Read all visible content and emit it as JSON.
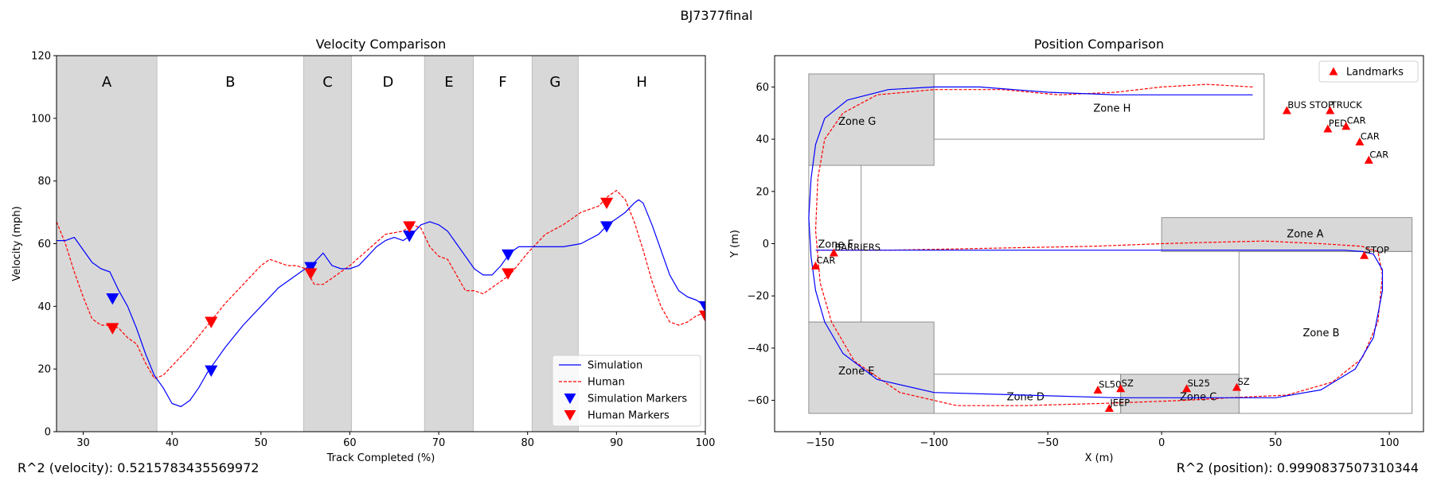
{
  "figure": {
    "suptitle": "BJ7377final",
    "r2_velocity": "R^2 (velocity): 0.5215783435569972",
    "r2_position": "R^2 (position): 0.9990837507310344"
  },
  "colors": {
    "simulation": "#0000ff",
    "human": "#ff0000",
    "zone_fill": "#d8d8d8",
    "zone_edge": "#909090",
    "landmark": "#ff0000"
  },
  "chart_data": [
    {
      "type": "line",
      "title": "Velocity Comparison",
      "xlabel": "Track Completed (%)",
      "ylabel": "Velocity (mph)",
      "xlim": [
        27,
        100
      ],
      "ylim": [
        0,
        120
      ],
      "xticks": [
        30,
        40,
        50,
        60,
        70,
        80,
        90,
        100
      ],
      "yticks": [
        0,
        20,
        40,
        60,
        80,
        100,
        120
      ],
      "grid": false,
      "legend": "lower-right",
      "sections": [
        {
          "label": "A",
          "x0": 27,
          "x1": 38.3,
          "shaded": true
        },
        {
          "label": "B",
          "x0": 38.3,
          "x1": 54.8,
          "shaded": false
        },
        {
          "label": "C",
          "x0": 54.8,
          "x1": 60.2,
          "shaded": true
        },
        {
          "label": "D",
          "x0": 60.2,
          "x1": 68.4,
          "shaded": false
        },
        {
          "label": "E",
          "x0": 68.4,
          "x1": 73.9,
          "shaded": true
        },
        {
          "label": "F",
          "x0": 73.9,
          "x1": 80.5,
          "shaded": false
        },
        {
          "label": "G",
          "x0": 80.5,
          "x1": 85.7,
          "shaded": true
        },
        {
          "label": "H",
          "x0": 85.7,
          "x1": 100,
          "shaded": false
        }
      ],
      "series": [
        {
          "name": "Simulation",
          "style": "solid",
          "x": [
            27,
            28,
            29,
            30,
            31,
            32,
            33,
            34,
            35,
            36,
            37,
            38,
            39,
            40,
            41,
            42,
            43,
            44,
            45,
            46,
            48,
            50,
            52,
            54,
            55,
            56,
            57,
            58,
            59,
            60,
            61,
            62,
            63,
            64,
            65,
            66,
            67,
            68,
            69,
            70,
            71,
            72,
            73,
            74,
            75,
            76,
            77,
            78,
            79,
            80,
            82,
            84,
            86,
            88,
            89,
            90,
            91,
            92,
            92.5,
            93,
            94,
            95,
            96,
            97,
            98,
            99,
            100
          ],
          "y": [
            61,
            61,
            62,
            58,
            54,
            52,
            51,
            45,
            40,
            33,
            25,
            18,
            14,
            9,
            8,
            10,
            14,
            19,
            23,
            27,
            34,
            40,
            46,
            50,
            52,
            54,
            57,
            53,
            52,
            52,
            53,
            56,
            59,
            61,
            62,
            61,
            63,
            66,
            67,
            66,
            64,
            60,
            56,
            52,
            50,
            50,
            53,
            57,
            59,
            59,
            59,
            59,
            60,
            63,
            66,
            68,
            70,
            73,
            74,
            73,
            66,
            58,
            50,
            45,
            43,
            42,
            40
          ]
        },
        {
          "name": "Human",
          "style": "dashed",
          "x": [
            27,
            28,
            29,
            30,
            31,
            32,
            33,
            34,
            35,
            36,
            37,
            38,
            39,
            40,
            42,
            44,
            46,
            48,
            50,
            51,
            52,
            53,
            54,
            55,
            56,
            57,
            58,
            60,
            62,
            64,
            66,
            67,
            68,
            69,
            70,
            71,
            72,
            73,
            74,
            75,
            76,
            77,
            78,
            80,
            82,
            84,
            86,
            88,
            89,
            90,
            91,
            92,
            93,
            94,
            95,
            96,
            97,
            98,
            99,
            100
          ],
          "y": [
            67,
            60,
            51,
            43,
            36,
            34,
            34,
            33,
            30,
            28,
            22,
            17,
            18,
            21,
            27,
            34,
            41,
            47,
            53,
            55,
            54,
            53,
            53,
            52,
            47,
            47,
            49,
            53,
            58,
            63,
            64,
            66,
            65,
            59,
            56,
            55,
            50,
            45,
            45,
            44,
            46,
            48,
            50,
            57,
            63,
            66,
            70,
            72,
            75,
            77,
            74,
            67,
            58,
            48,
            40,
            35,
            34,
            35,
            37,
            38
          ]
        }
      ],
      "marker_series": [
        {
          "name": "Simulation Markers",
          "x": [
            33.3,
            44.4,
            55.6,
            66.7,
            77.8,
            88.9,
            100
          ],
          "y": [
            42.5,
            19.5,
            52.5,
            62.5,
            56.5,
            65.5,
            40
          ]
        },
        {
          "name": "Human Markers",
          "x": [
            33.3,
            44.4,
            55.6,
            66.7,
            77.8,
            88.9,
            100
          ],
          "y": [
            33,
            35,
            50.5,
            65.5,
            50.5,
            73,
            37
          ]
        }
      ]
    },
    {
      "type": "line",
      "title": "Position Comparison",
      "xlabel": "X (m)",
      "ylabel": "Y (m)",
      "xlim": [
        -170,
        115
      ],
      "ylim": [
        -72,
        72
      ],
      "xticks": [
        -150,
        -100,
        -50,
        0,
        50,
        100
      ],
      "yticks": [
        -60,
        -40,
        -20,
        0,
        20,
        40,
        60
      ],
      "grid": false,
      "legend": "top-right",
      "legend_label": "Landmarks",
      "zones": [
        {
          "label": "Zone A",
          "x0": 0,
          "y0": -3,
          "x1": 110,
          "y1": 10,
          "shaded": true
        },
        {
          "label": "Zone B",
          "x0": 34,
          "y0": -65,
          "x1": 110,
          "y1": -3,
          "shaded": false
        },
        {
          "label": "Zone C",
          "x0": -18,
          "y0": -65,
          "x1": 34,
          "y1": -50,
          "shaded": true
        },
        {
          "label": "Zone D",
          "x0": -100,
          "y0": -65,
          "x1": -18,
          "y1": -50,
          "shaded": false
        },
        {
          "label": "Zone E",
          "x0": -155,
          "y0": -65,
          "x1": -100,
          "y1": -30,
          "shaded": true
        },
        {
          "label": "Zone F",
          "x0": -155,
          "y0": -30,
          "x1": -132,
          "y1": 30,
          "shaded": false
        },
        {
          "label": "Zone G",
          "x0": -155,
          "y0": 30,
          "x1": -100,
          "y1": 65,
          "shaded": true
        },
        {
          "label": "Zone H",
          "x0": -100,
          "y0": 40,
          "x1": 45,
          "y1": 65,
          "shaded": false
        }
      ],
      "series": [
        {
          "name": "Simulation",
          "style": "solid",
          "x": [
            40,
            10,
            -20,
            -50,
            -80,
            -100,
            -120,
            -138,
            -148,
            -152,
            -154,
            -155,
            -154,
            -152,
            -148,
            -140,
            -125,
            -100,
            -60,
            -20,
            10,
            30,
            50,
            70,
            85,
            93,
            97,
            97,
            93,
            88,
            80,
            70,
            55,
            45,
            35,
            20,
            0,
            -20,
            -50,
            -80,
            -100,
            -120,
            -135,
            -145,
            -150,
            -151.5,
            -152,
            -152
          ],
          "y": [
            57,
            57,
            57,
            58,
            60,
            60,
            59,
            55,
            48,
            38,
            25,
            10,
            -5,
            -18,
            -30,
            -42,
            -52,
            -57,
            -58,
            -59,
            -59,
            -59,
            -59,
            -56,
            -48,
            -36,
            -18,
            -10,
            -4,
            -3,
            -2.5,
            -2.5,
            -2.5,
            -2.5,
            -2.5,
            -2.5,
            -2.5,
            -2.5,
            -2.5,
            -2.5,
            -2.5,
            -2.5,
            -2.5,
            -2.5,
            -2.5,
            -2.5,
            -2.5,
            -2.5
          ]
        },
        {
          "name": "Human",
          "style": "dashed",
          "x": [
            40,
            20,
            0,
            -20,
            -45,
            -70,
            -100,
            -125,
            -140,
            -148,
            -151,
            -152,
            -150,
            -145,
            -135,
            -115,
            -90,
            -60,
            -20,
            10,
            30,
            55,
            75,
            88,
            95,
            97,
            95,
            88,
            70,
            45,
            20,
            0,
            -30,
            -60,
            -90,
            -120,
            -140,
            -150,
            -152
          ],
          "y": [
            60,
            61,
            60,
            58,
            57,
            59,
            59,
            57,
            50,
            40,
            25,
            5,
            -15,
            -30,
            -45,
            -57,
            -62,
            -62,
            -61,
            -60,
            -59,
            -58,
            -53,
            -44,
            -30,
            -12,
            -3,
            -1,
            0,
            1,
            0.5,
            0,
            -1,
            -1.5,
            -2,
            -2.5,
            -2.5,
            -2.5,
            -2.5
          ]
        }
      ],
      "landmarks": [
        {
          "label": "BUS STOP",
          "x": 55,
          "y": 51
        },
        {
          "label": "TRUCK",
          "x": 74,
          "y": 51
        },
        {
          "label": "PED",
          "x": 73,
          "y": 44
        },
        {
          "label": "CAR",
          "x": 81,
          "y": 45
        },
        {
          "label": "CAR",
          "x": 87,
          "y": 39
        },
        {
          "label": "CAR",
          "x": 91,
          "y": 32
        },
        {
          "label": "STOP",
          "x": 89,
          "y": -4.5
        },
        {
          "label": "BARRIERS",
          "x": -144,
          "y": -3.5
        },
        {
          "label": "CAR",
          "x": -152,
          "y": -8.5
        },
        {
          "label": "SL50",
          "x": -28,
          "y": -56
        },
        {
          "label": "SZ",
          "x": -18,
          "y": -55.5
        },
        {
          "label": "JEEP",
          "x": -23,
          "y": -63
        },
        {
          "label": "SL25",
          "x": 11,
          "y": -55.5
        },
        {
          "label": "SZ",
          "x": 33,
          "y": -55
        }
      ]
    }
  ]
}
